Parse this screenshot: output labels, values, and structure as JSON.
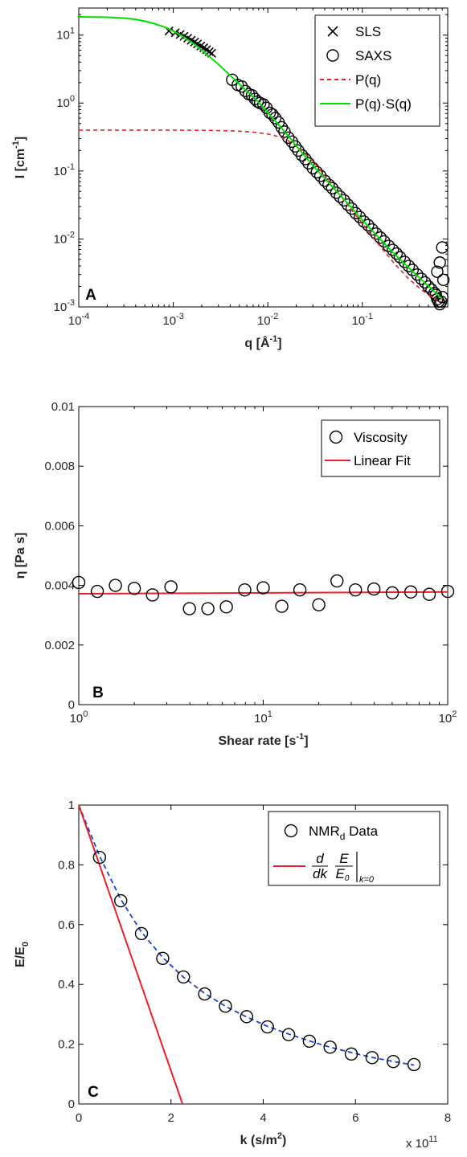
{
  "chart_data": [
    {
      "type": "scatter",
      "panel": "A",
      "xlabel": "q [Å",
      "xlabel_sup": "-1",
      "xlabel_end": "]",
      "ylabel": "I [cm",
      "ylabel_sup": "-1",
      "ylabel_end": "]",
      "xscale": "log",
      "yscale": "log",
      "xlim": [
        0.0001,
        0.8
      ],
      "ylim": [
        0.001,
        25
      ],
      "x_ticks": [
        {
          "v": 0.0001,
          "base": "10",
          "exp": "-4"
        },
        {
          "v": 0.001,
          "base": "10",
          "exp": "-3"
        },
        {
          "v": 0.01,
          "base": "10",
          "exp": "-2"
        },
        {
          "v": 0.1,
          "base": "10",
          "exp": "-1"
        }
      ],
      "y_ticks": [
        {
          "v": 0.001,
          "base": "10",
          "exp": "-3"
        },
        {
          "v": 0.01,
          "base": "10",
          "exp": "-2"
        },
        {
          "v": 0.1,
          "base": "10",
          "exp": "-1"
        },
        {
          "v": 1,
          "base": "10",
          "exp": "0"
        },
        {
          "v": 10,
          "base": "10",
          "exp": "1"
        }
      ],
      "legend_position": "top-right",
      "legend": [
        {
          "name": "SLS",
          "marker": "cross",
          "color": "#000000"
        },
        {
          "name": "SAXS",
          "marker": "circle",
          "color": "#000000"
        },
        {
          "name": "P(q)",
          "line": "dashed",
          "color": "#e8202a"
        },
        {
          "name": "P(q)·S(q)",
          "line": "solid",
          "color": "#00e000"
        }
      ],
      "series": [
        {
          "name": "SLS",
          "x": [
            0.0009,
            0.00105,
            0.00118,
            0.0013,
            0.00142,
            0.00155,
            0.00168,
            0.0018,
            0.00195,
            0.0021,
            0.00225,
            0.0024,
            0.00255
          ],
          "y": [
            11.5,
            10.8,
            10.2,
            9.6,
            9.0,
            8.4,
            7.9,
            7.4,
            6.9,
            6.5,
            6.1,
            5.7,
            5.4
          ]
        },
        {
          "name": "SAXS",
          "x": [
            0.0042,
            0.0048,
            0.0053,
            0.0058,
            0.0063,
            0.0068,
            0.0073,
            0.0078,
            0.0083,
            0.009,
            0.0097,
            0.0105,
            0.0112,
            0.012,
            0.013,
            0.014,
            0.015,
            0.0165,
            0.018,
            0.0195,
            0.021,
            0.023,
            0.025,
            0.027,
            0.03,
            0.033,
            0.036,
            0.04,
            0.044,
            0.048,
            0.053,
            0.058,
            0.064,
            0.07,
            0.077,
            0.085,
            0.094,
            0.104,
            0.115,
            0.127,
            0.14,
            0.155,
            0.17,
            0.19,
            0.21,
            0.23,
            0.25,
            0.28,
            0.31,
            0.34,
            0.38,
            0.42,
            0.46,
            0.5,
            0.54,
            0.58,
            0.6,
            0.62,
            0.64,
            0.66,
            0.68,
            0.7,
            0.62,
            0.66,
            0.7,
            0.72
          ],
          "y": [
            2.2,
            1.85,
            1.75,
            1.5,
            1.35,
            1.3,
            1.15,
            1.05,
            1.0,
            0.95,
            0.85,
            0.72,
            0.68,
            0.6,
            0.52,
            0.44,
            0.38,
            0.31,
            0.27,
            0.23,
            0.2,
            0.17,
            0.15,
            0.13,
            0.11,
            0.096,
            0.085,
            0.072,
            0.063,
            0.056,
            0.048,
            0.042,
            0.037,
            0.032,
            0.028,
            0.024,
            0.021,
            0.018,
            0.016,
            0.0138,
            0.012,
            0.0105,
            0.0092,
            0.0079,
            0.0069,
            0.0061,
            0.0054,
            0.0046,
            0.004,
            0.0035,
            0.003,
            0.0026,
            0.0023,
            0.002,
            0.0018,
            0.0016,
            0.0015,
            0.0013,
            0.0012,
            0.0011,
            0.0012,
            0.0014,
            0.0033,
            0.0045,
            0.0075,
            0.0025
          ]
        },
        {
          "name": "P(q)",
          "x": [
            0.0001,
            0.0005,
            0.001,
            0.002,
            0.004,
            0.006,
            0.008,
            0.01,
            0.012,
            0.015,
            0.018,
            0.022,
            0.027,
            0.033,
            0.04,
            0.05,
            0.065,
            0.08,
            0.1,
            0.13,
            0.17,
            0.22,
            0.3,
            0.4,
            0.5,
            0.6,
            0.7
          ],
          "y": [
            0.4,
            0.4,
            0.399,
            0.397,
            0.39,
            0.38,
            0.365,
            0.35,
            0.33,
            0.3,
            0.26,
            0.21,
            0.16,
            0.12,
            0.085,
            0.058,
            0.036,
            0.025,
            0.017,
            0.0105,
            0.0066,
            0.0043,
            0.0027,
            0.0019,
            0.0015,
            0.0013,
            0.0012
          ]
        },
        {
          "name": "P(q)·S(q)",
          "x": [
            0.0001,
            0.0002,
            0.0003,
            0.0004,
            0.0005,
            0.0006,
            0.0008,
            0.001,
            0.0013,
            0.0017,
            0.0022,
            0.003,
            0.004,
            0.005,
            0.0065,
            0.008,
            0.01,
            0.013,
            0.017,
            0.022,
            0.03,
            0.04,
            0.055,
            0.075,
            0.1,
            0.14,
            0.2,
            0.28,
            0.4,
            0.55,
            0.7
          ],
          "y": [
            18.5,
            18.3,
            17.8,
            17.0,
            16.0,
            15.0,
            13.2,
            11.5,
            9.3,
            7.2,
            5.4,
            3.7,
            2.55,
            1.9,
            1.35,
            1.02,
            0.72,
            0.48,
            0.31,
            0.2,
            0.12,
            0.078,
            0.048,
            0.03,
            0.019,
            0.0115,
            0.0068,
            0.0043,
            0.0027,
            0.0018,
            0.0013
          ]
        }
      ]
    },
    {
      "type": "scatter",
      "panel": "B",
      "xlabel": "Shear rate [s",
      "xlabel_sup": "-1",
      "xlabel_end": "]",
      "ylabel": "η [Pa s]",
      "xscale": "log",
      "yscale": "linear",
      "xlim": [
        1,
        100
      ],
      "ylim": [
        0,
        0.01
      ],
      "x_ticks": [
        {
          "v": 1,
          "base": "10",
          "exp": "0"
        },
        {
          "v": 10,
          "base": "10",
          "exp": "1"
        },
        {
          "v": 100,
          "base": "10",
          "exp": "2"
        }
      ],
      "y_ticks": [
        {
          "v": 0,
          "label": "0"
        },
        {
          "v": 0.002,
          "label": "0.002"
        },
        {
          "v": 0.004,
          "label": "0.004"
        },
        {
          "v": 0.006,
          "label": "0.006"
        },
        {
          "v": 0.008,
          "label": "0.008"
        },
        {
          "v": 0.01,
          "label": "0.01"
        }
      ],
      "legend_position": "top-right",
      "legend": [
        {
          "name": "Viscosity",
          "marker": "circle",
          "color": "#000000"
        },
        {
          "name": "Linear Fit",
          "line": "solid",
          "color": "#e8202a"
        }
      ],
      "series": [
        {
          "name": "Viscosity",
          "x": [
            1.0,
            1.26,
            1.58,
            2.0,
            2.51,
            3.16,
            3.98,
            5.01,
            6.31,
            7.94,
            10.0,
            12.6,
            15.8,
            20.0,
            25.1,
            31.6,
            39.8,
            50.1,
            63.1,
            79.4,
            100
          ],
          "y": [
            0.0041,
            0.0038,
            0.004,
            0.0039,
            0.00368,
            0.00395,
            0.00322,
            0.00322,
            0.00328,
            0.00385,
            0.00392,
            0.0033,
            0.00385,
            0.00335,
            0.00415,
            0.00385,
            0.00388,
            0.00375,
            0.00378,
            0.0037,
            0.0038
          ]
        },
        {
          "name": "Linear Fit",
          "x": [
            1,
            100
          ],
          "y": [
            0.00372,
            0.00378
          ]
        }
      ]
    },
    {
      "type": "scatter",
      "panel": "C",
      "xlabel": "k (s/m",
      "xlabel_sup": "2",
      "xlabel_end": ")",
      "ylabel": "E/E",
      "ylabel_sub": "0",
      "xscale": "linear",
      "yscale": "linear",
      "xlim": [
        0,
        8
      ],
      "ylim": [
        0,
        1
      ],
      "x_multiplier_base": "x 10",
      "x_multiplier_exp": "11",
      "x_ticks": [
        {
          "v": 0,
          "label": "0"
        },
        {
          "v": 2,
          "label": "2"
        },
        {
          "v": 4,
          "label": "4"
        },
        {
          "v": 6,
          "label": "6"
        },
        {
          "v": 8,
          "label": "8"
        }
      ],
      "y_ticks": [
        {
          "v": 0,
          "label": "0"
        },
        {
          "v": 0.2,
          "label": "0.2"
        },
        {
          "v": 0.4,
          "label": "0.4"
        },
        {
          "v": 0.6,
          "label": "0.6"
        },
        {
          "v": 0.8,
          "label": "0.8"
        },
        {
          "v": 1,
          "label": "1"
        }
      ],
      "legend_position": "top-right",
      "legend": [
        {
          "name": "NMR",
          "name_sub": "d",
          "name_end": " Data",
          "marker": "circle",
          "color": "#000000"
        },
        {
          "name": "d",
          "name_den": "dk",
          "frac_num": "E",
          "frac_den": "E",
          "frac_den_sub": "0",
          "eval": "k=0",
          "line": "solid",
          "color": "#e8202a"
        }
      ],
      "series": [
        {
          "name": "NMR Data",
          "x": [
            0.45,
            0.91,
            1.36,
            1.82,
            2.27,
            2.73,
            3.18,
            3.64,
            4.09,
            4.55,
            5.0,
            5.45,
            5.91,
            6.36,
            6.82,
            7.27
          ],
          "y": [
            0.825,
            0.68,
            0.57,
            0.487,
            0.425,
            0.368,
            0.327,
            0.292,
            0.258,
            0.232,
            0.21,
            0.19,
            0.167,
            0.155,
            0.142,
            0.132
          ]
        },
        {
          "name": "d/dk E/E0",
          "x": [
            0,
            2.25
          ],
          "y": [
            1,
            0
          ]
        },
        {
          "name": "fit",
          "line": "dashed",
          "color": "#1f3fd8",
          "x": [
            0,
            0.45,
            0.91,
            1.36,
            1.82,
            2.27,
            2.73,
            3.18,
            3.64,
            4.09,
            4.55,
            5.0,
            5.45,
            5.91,
            6.36,
            6.82,
            7.27
          ],
          "y": [
            1,
            0.83,
            0.685,
            0.575,
            0.49,
            0.424,
            0.37,
            0.327,
            0.291,
            0.26,
            0.234,
            0.211,
            0.19,
            0.172,
            0.156,
            0.142,
            0.13
          ]
        }
      ]
    }
  ]
}
